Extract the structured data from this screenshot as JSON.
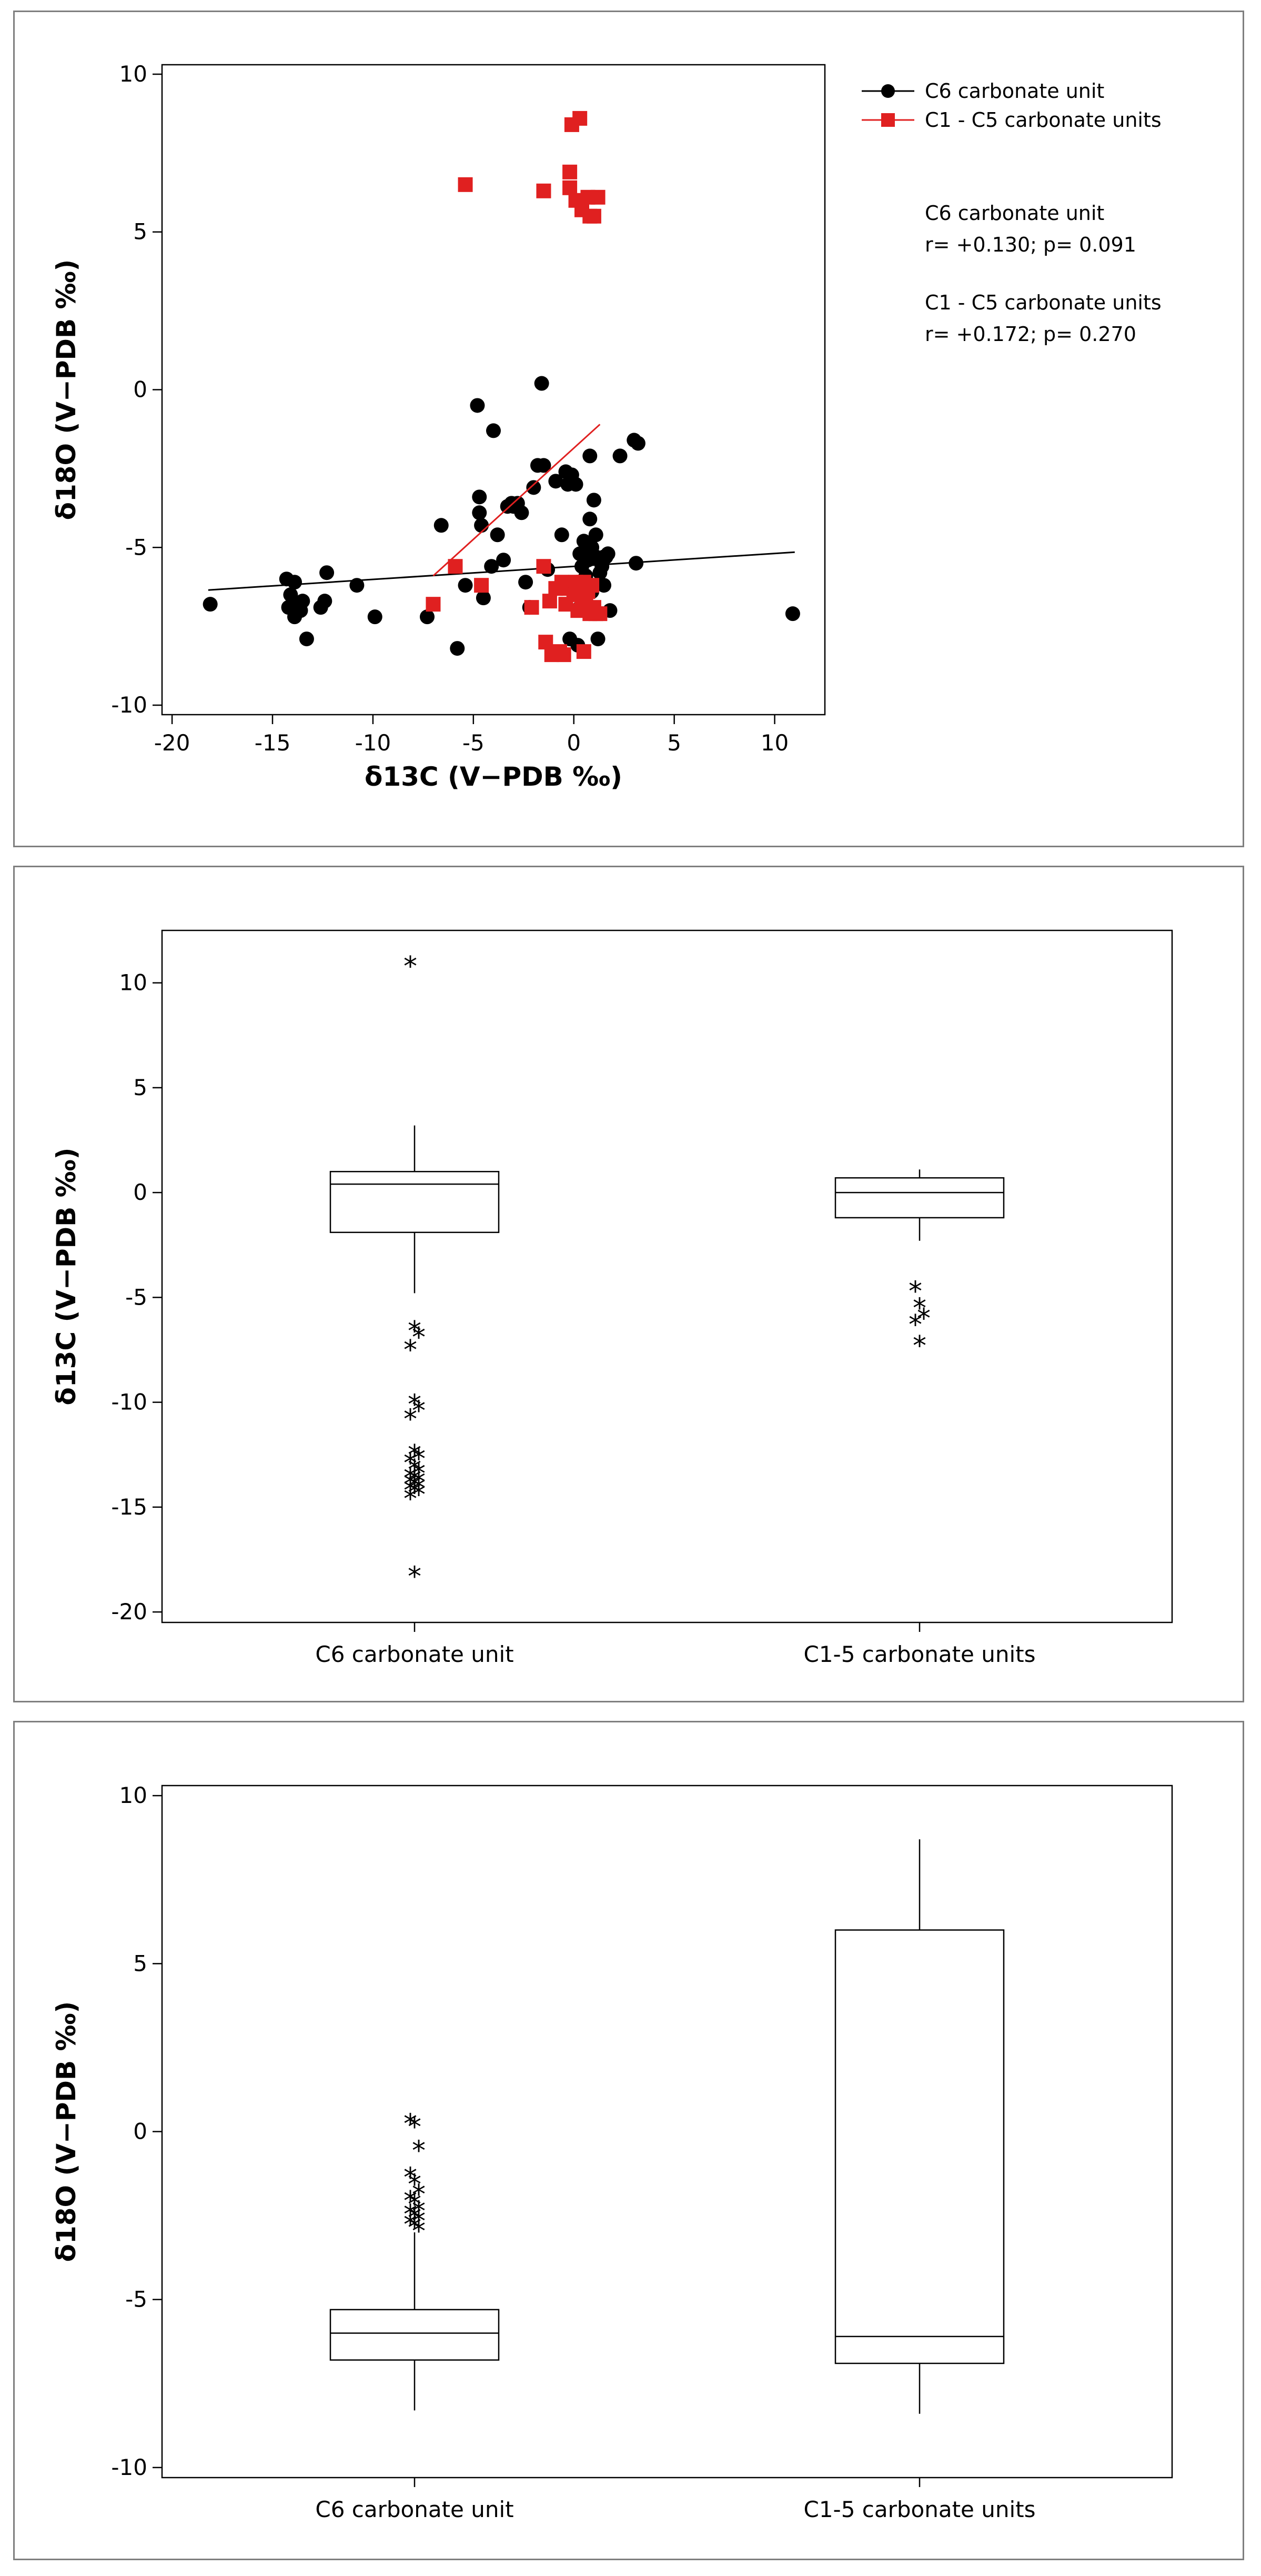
{
  "chart_data": [
    {
      "type": "scatter",
      "xlabel": "δ13C (V−PDB ‰)",
      "ylabel": "δ18O (V−PDB ‰)",
      "xlim": [
        -20.5,
        12.5
      ],
      "ylim": [
        -10.3,
        10.3
      ],
      "xticks": [
        -20,
        -15,
        -10,
        -5,
        0,
        5,
        10
      ],
      "yticks": [
        -10,
        -5,
        0,
        5,
        10
      ],
      "grid": false,
      "legend_position": "right",
      "series": [
        {
          "name": "C6 carbonate unit",
          "color": "#000000",
          "marker": "circle",
          "trendline": {
            "x": [
              -18.2,
              11.0
            ],
            "y": [
              -6.35,
              -5.15
            ]
          },
          "points": [
            [
              -18.1,
              -6.8
            ],
            [
              -14.3,
              -6.0
            ],
            [
              -13.9,
              -6.1
            ],
            [
              -14.1,
              -6.5
            ],
            [
              -13.8,
              -6.8
            ],
            [
              -14.2,
              -6.9
            ],
            [
              -13.6,
              -7.0
            ],
            [
              -13.5,
              -6.7
            ],
            [
              -13.9,
              -7.2
            ],
            [
              -13.3,
              -7.9
            ],
            [
              -12.6,
              -6.9
            ],
            [
              -12.4,
              -6.7
            ],
            [
              -12.3,
              -5.8
            ],
            [
              -10.8,
              -6.2
            ],
            [
              -9.9,
              -7.2
            ],
            [
              -7.3,
              -7.2
            ],
            [
              -6.6,
              -4.3
            ],
            [
              -5.8,
              -8.2
            ],
            [
              -5.4,
              -6.2
            ],
            [
              -4.8,
              -0.5
            ],
            [
              -4.7,
              -3.4
            ],
            [
              -4.7,
              -3.9
            ],
            [
              -4.6,
              -4.3
            ],
            [
              -4.5,
              -6.6
            ],
            [
              -4.1,
              -5.6
            ],
            [
              -4.0,
              -1.3
            ],
            [
              -3.8,
              -4.6
            ],
            [
              -3.5,
              -5.4
            ],
            [
              -3.3,
              -3.7
            ],
            [
              -3.1,
              -3.6
            ],
            [
              -3.0,
              -3.7
            ],
            [
              -2.8,
              -3.6
            ],
            [
              -2.6,
              -3.9
            ],
            [
              -2.4,
              -6.1
            ],
            [
              -2.2,
              -6.9
            ],
            [
              -2.0,
              -3.1
            ],
            [
              -1.8,
              -2.4
            ],
            [
              -1.6,
              0.2
            ],
            [
              -1.5,
              -2.4
            ],
            [
              -1.3,
              -5.7
            ],
            [
              -0.9,
              -2.9
            ],
            [
              -0.6,
              -4.6
            ],
            [
              -0.4,
              -2.6
            ],
            [
              -0.3,
              -3.0
            ],
            [
              -0.2,
              -7.9
            ],
            [
              -0.1,
              -2.7
            ],
            [
              0.1,
              -3.0
            ],
            [
              0.2,
              -8.1
            ],
            [
              0.3,
              -6.9
            ],
            [
              0.3,
              -5.2
            ],
            [
              0.4,
              -5.6
            ],
            [
              0.4,
              -6.3
            ],
            [
              0.5,
              -4.8
            ],
            [
              0.6,
              -5.9
            ],
            [
              0.6,
              -6.6
            ],
            [
              0.7,
              -5.4
            ],
            [
              0.8,
              -4.1
            ],
            [
              0.8,
              -2.1
            ],
            [
              0.9,
              -5.0
            ],
            [
              0.9,
              -6.4
            ],
            [
              1.0,
              -3.5
            ],
            [
              1.1,
              -5.3
            ],
            [
              1.1,
              -4.6
            ],
            [
              1.2,
              -7.9
            ],
            [
              1.3,
              -5.8
            ],
            [
              1.3,
              -5.4
            ],
            [
              1.4,
              -5.6
            ],
            [
              1.5,
              -5.3
            ],
            [
              1.5,
              -6.2
            ],
            [
              1.6,
              -5.3
            ],
            [
              1.7,
              -5.2
            ],
            [
              1.8,
              -7.0
            ],
            [
              2.3,
              -2.1
            ],
            [
              3.0,
              -1.6
            ],
            [
              3.2,
              -1.7
            ],
            [
              3.1,
              -5.5
            ],
            [
              10.9,
              -7.1
            ]
          ]
        },
        {
          "name": "C1 - C5 carbonate units",
          "color": "#e02020",
          "marker": "square",
          "trendline": {
            "x": [
              -7.0,
              1.3
            ],
            "y": [
              -5.9,
              -1.1
            ]
          },
          "points": [
            [
              -7.0,
              -6.8
            ],
            [
              -5.9,
              -5.6
            ],
            [
              -5.4,
              6.5
            ],
            [
              -4.6,
              -6.2
            ],
            [
              -2.1,
              -6.9
            ],
            [
              -1.5,
              -5.6
            ],
            [
              -1.5,
              6.3
            ],
            [
              -1.4,
              -8.0
            ],
            [
              -1.2,
              -6.7
            ],
            [
              -1.1,
              -8.4
            ],
            [
              -0.9,
              -6.3
            ],
            [
              -0.7,
              -8.3
            ],
            [
              -0.6,
              -6.1
            ],
            [
              -0.5,
              -8.4
            ],
            [
              -0.4,
              -6.8
            ],
            [
              -0.3,
              -6.3
            ],
            [
              -0.2,
              6.9
            ],
            [
              -0.2,
              6.4
            ],
            [
              -0.1,
              8.4
            ],
            [
              0.0,
              -6.5
            ],
            [
              0.1,
              -6.1
            ],
            [
              0.1,
              6.0
            ],
            [
              0.2,
              -7.0
            ],
            [
              0.3,
              8.6
            ],
            [
              0.4,
              -6.8
            ],
            [
              0.4,
              5.7
            ],
            [
              0.5,
              -8.3
            ],
            [
              0.5,
              -6.1
            ],
            [
              0.6,
              -6.8
            ],
            [
              0.7,
              -6.4
            ],
            [
              0.7,
              6.1
            ],
            [
              0.8,
              -7.1
            ],
            [
              0.8,
              5.5
            ],
            [
              0.9,
              -6.2
            ],
            [
              1.0,
              5.5
            ],
            [
              1.0,
              -6.9
            ],
            [
              1.1,
              -7.1
            ],
            [
              1.2,
              6.1
            ],
            [
              1.3,
              -7.1
            ]
          ]
        }
      ],
      "annotations": [
        {
          "lines": [
            "C6 carbonate unit",
            "r= +0.130; p= 0.091"
          ]
        },
        {
          "lines": [
            "C1 - C5 carbonate units",
            "r= +0.172; p= 0.270"
          ]
        }
      ]
    },
    {
      "type": "box",
      "categories": [
        "C6 carbonate unit",
        "C1-5 carbonate units"
      ],
      "xlabel": "",
      "ylabel": "δ13C (V−PDB ‰)",
      "ylim": [
        -20.5,
        12.5
      ],
      "yticks": [
        -20,
        -15,
        -10,
        -5,
        0,
        5,
        10
      ],
      "grid": false,
      "boxes": [
        {
          "category": "C6 carbonate unit",
          "whisker_low": -4.8,
          "q1": -1.9,
          "median": 0.4,
          "q3": 1.0,
          "whisker_high": 3.2,
          "outliers": [
            10.9,
            -6.5,
            -6.8,
            -7.4,
            -10.0,
            -10.3,
            -10.7,
            -12.4,
            -12.6,
            -12.8,
            -13.1,
            -13.3,
            -13.5,
            -13.6,
            -13.7,
            -13.8,
            -13.9,
            -14.0,
            -14.1,
            -14.2,
            -14.3,
            -14.5,
            -18.2
          ]
        },
        {
          "category": "C1-5 carbonate units",
          "whisker_low": -2.3,
          "q1": -1.2,
          "median": 0.0,
          "q3": 0.7,
          "whisker_high": 1.1,
          "outliers": [
            -4.6,
            -5.4,
            -5.9,
            -6.2,
            -7.2
          ]
        }
      ]
    },
    {
      "type": "box",
      "categories": [
        "C6 carbonate unit",
        "C1-5 carbonate units"
      ],
      "xlabel": "",
      "ylabel": "δ18O (V−PDB ‰)",
      "ylim": [
        -10.3,
        10.3
      ],
      "yticks": [
        -10,
        -5,
        0,
        5,
        10
      ],
      "grid": false,
      "boxes": [
        {
          "category": "C6 carbonate unit",
          "whisker_low": -8.3,
          "q1": -6.8,
          "median": -6.0,
          "q3": -5.3,
          "whisker_high": -3.0,
          "outliers": [
            0.3,
            0.2,
            -0.5,
            -1.3,
            -1.5,
            -1.8,
            -2.0,
            -2.1,
            -2.3,
            -2.4,
            -2.5,
            -2.6,
            -2.7,
            -2.8,
            -2.9
          ]
        },
        {
          "category": "C1-5 carbonate units",
          "whisker_low": -8.4,
          "q1": -6.9,
          "median": -6.1,
          "q3": 6.0,
          "whisker_high": 8.7,
          "outliers": []
        }
      ]
    }
  ]
}
